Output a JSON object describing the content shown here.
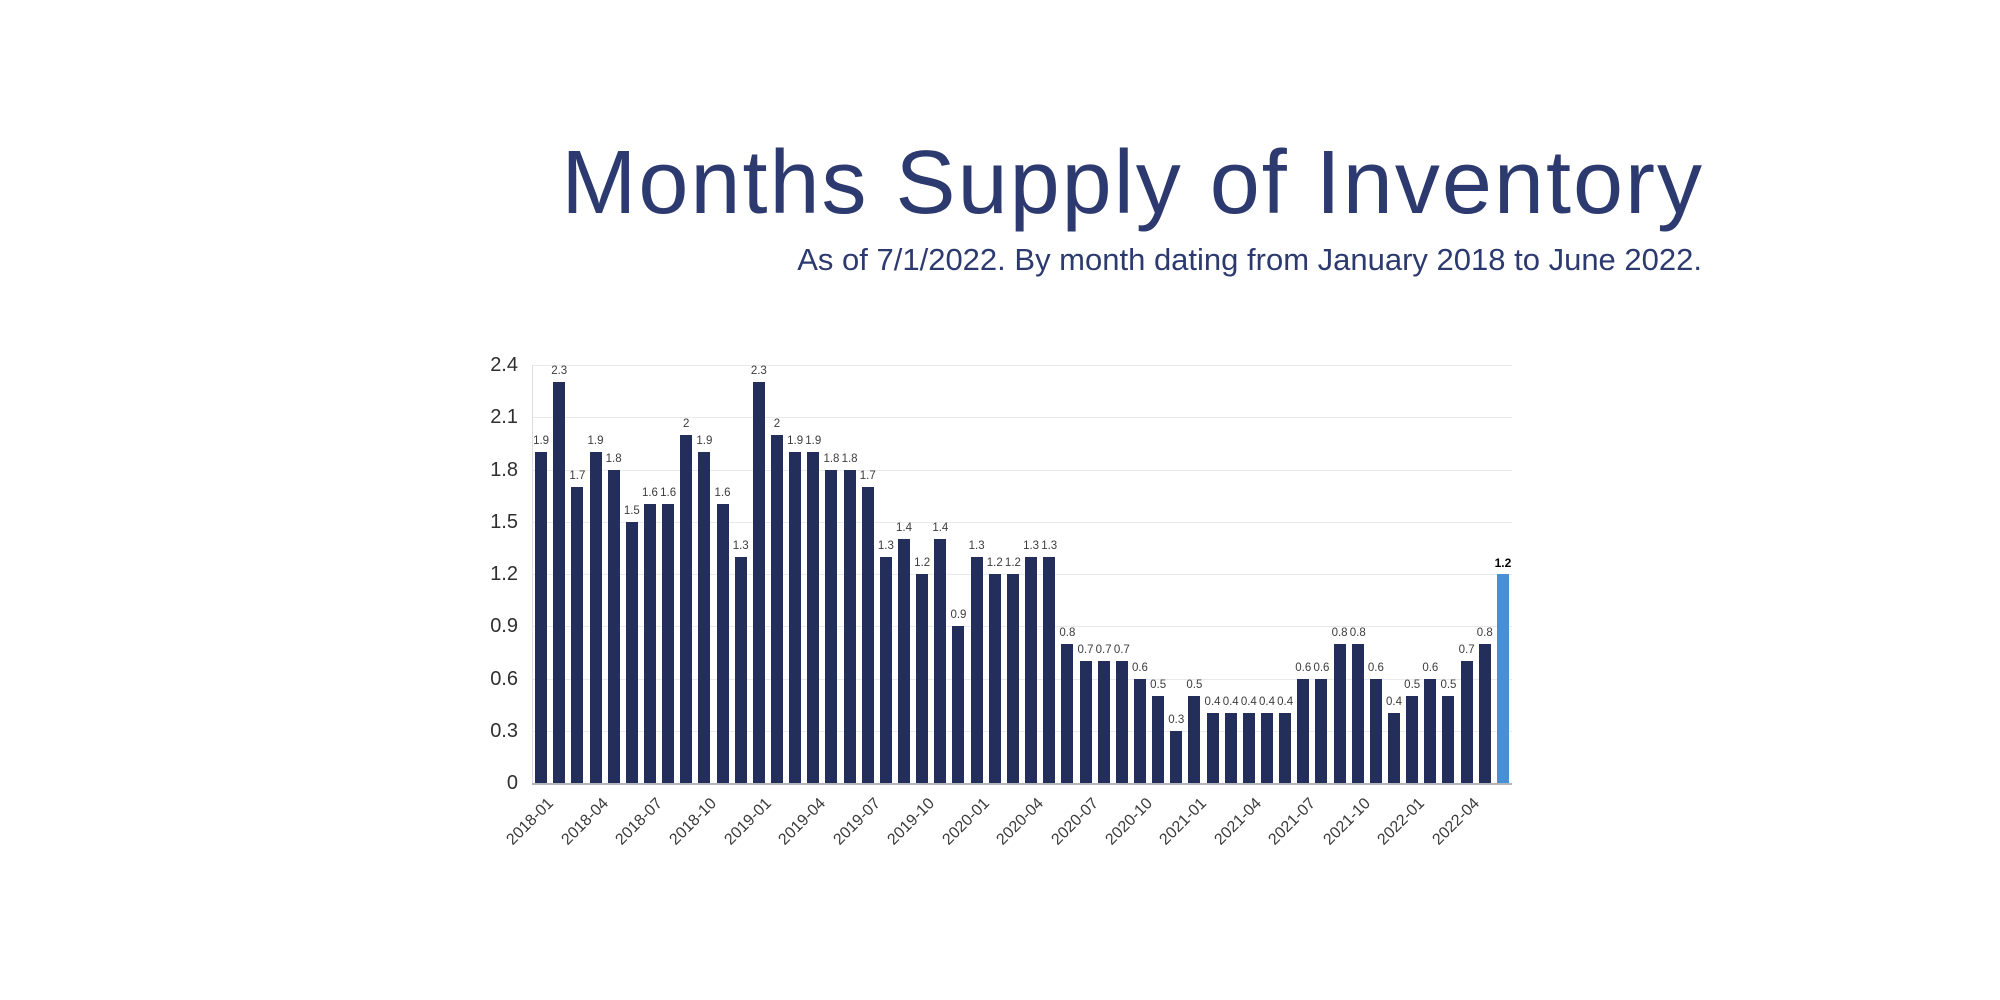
{
  "header": {
    "title": "Months Supply of Inventory",
    "subtitle": "As of 7/1/2022. By month dating from January 2018 to June 2022."
  },
  "colors": {
    "title_text": "#2c3a6f",
    "bar": "#232e5b",
    "bar_highlight": "#4a8fd3",
    "gridline": "#e9eaee",
    "y_axis_line": "#dcdde1",
    "x_axis_line": "#b2b5ba",
    "value_label": "#3c3c3c",
    "value_label_highlight": "#000000",
    "tick_label": "#2f2f2f"
  },
  "chart_data": {
    "type": "bar",
    "title": "Months Supply of Inventory",
    "subtitle": "As of 7/1/2022. By month dating from January 2018 to June 2022.",
    "categories": [
      "2018-01",
      "2018-02",
      "2018-03",
      "2018-04",
      "2018-05",
      "2018-06",
      "2018-07",
      "2018-08",
      "2018-09",
      "2018-10",
      "2018-11",
      "2018-12",
      "2019-01",
      "2019-02",
      "2019-03",
      "2019-04",
      "2019-05",
      "2019-06",
      "2019-07",
      "2019-08",
      "2019-09",
      "2019-10",
      "2019-11",
      "2019-12",
      "2020-01",
      "2020-02",
      "2020-03",
      "2020-04",
      "2020-05",
      "2020-06",
      "2020-07",
      "2020-08",
      "2020-09",
      "2020-10",
      "2020-11",
      "2020-12",
      "2021-01",
      "2021-02",
      "2021-03",
      "2021-04",
      "2021-05",
      "2021-06",
      "2021-07",
      "2021-08",
      "2021-09",
      "2021-10",
      "2021-11",
      "2021-12",
      "2022-01",
      "2022-02",
      "2022-03",
      "2022-04",
      "2022-05",
      "2022-06"
    ],
    "values": [
      1.9,
      2.3,
      1.7,
      1.9,
      1.8,
      1.5,
      1.6,
      1.6,
      2,
      1.9,
      1.6,
      1.3,
      2.3,
      2,
      1.9,
      1.9,
      1.8,
      1.8,
      1.7,
      1.3,
      1.4,
      1.2,
      1.4,
      0.9,
      1.3,
      1.2,
      1.2,
      1.3,
      1.3,
      0.8,
      0.7,
      0.7,
      0.7,
      0.6,
      0.5,
      0.3,
      0.5,
      0.4,
      0.4,
      0.4,
      0.4,
      0.4,
      0.6,
      0.6,
      0.8,
      0.8,
      0.6,
      0.4,
      0.5,
      0.6,
      0.5,
      0.7,
      0.8,
      1.2
    ],
    "highlight_index": 53,
    "xlabel": "",
    "ylabel": "",
    "ylim": [
      0,
      2.4
    ],
    "y_ticks": [
      0,
      0.3,
      0.6,
      0.9,
      1.2,
      1.5,
      1.8,
      2.1,
      2.4
    ],
    "x_tick_interval": 3,
    "grid": true,
    "value_labels": true,
    "legend": "none"
  }
}
